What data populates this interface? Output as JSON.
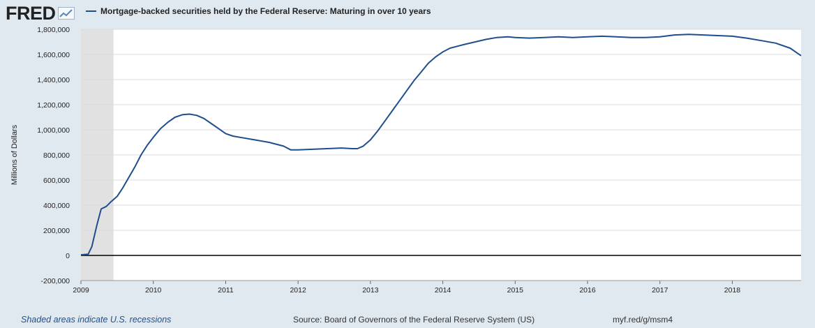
{
  "header": {
    "logo_text": "FRED",
    "title": "Mortgage-backed securities held by the Federal Reserve: Maturing in over 10 years"
  },
  "footer": {
    "recession_note": "Shaded areas indicate U.S. recessions",
    "source": "Source: Board of Governors of the Federal Reserve System (US)",
    "short_url": "myf.red/g/msm4"
  },
  "colors": {
    "series": "#1f4e8c",
    "recession": "#e1e1e1",
    "plot_bg": "#ffffff",
    "page_bg": "#e1e9f0"
  },
  "chart_data": {
    "type": "line",
    "title": "Mortgage-backed securities held by the Federal Reserve: Maturing in over 10 years",
    "ylabel": "Millions of Dollars",
    "xlabel": "",
    "xlim": [
      2009.0,
      2018.95
    ],
    "ylim": [
      -200000,
      1800000
    ],
    "yticks": [
      -200000,
      0,
      200000,
      400000,
      600000,
      800000,
      1000000,
      1200000,
      1400000,
      1600000,
      1800000
    ],
    "ytick_labels": [
      "-200,000",
      "0",
      "200,000",
      "400,000",
      "600,000",
      "800,000",
      "1,000,000",
      "1,200,000",
      "1,400,000",
      "1,600,000",
      "1,800,000"
    ],
    "xticks": [
      2009,
      2010,
      2011,
      2012,
      2013,
      2014,
      2015,
      2016,
      2017,
      2018
    ],
    "xtick_labels": [
      "2009",
      "2010",
      "2011",
      "2012",
      "2013",
      "2014",
      "2015",
      "2016",
      "2017",
      "2018"
    ],
    "grid": true,
    "recessions": [
      {
        "start": 2009.0,
        "end": 2009.45
      }
    ],
    "series": [
      {
        "name": "Mortgage-backed securities held by the Federal Reserve: Maturing in over 10 years",
        "x": [
          2009.0,
          2009.1,
          2009.15,
          2009.22,
          2009.28,
          2009.35,
          2009.42,
          2009.5,
          2009.58,
          2009.66,
          2009.75,
          2009.83,
          2009.92,
          2010.0,
          2010.1,
          2010.2,
          2010.3,
          2010.4,
          2010.5,
          2010.6,
          2010.7,
          2010.8,
          2010.9,
          2011.0,
          2011.1,
          2011.2,
          2011.4,
          2011.6,
          2011.8,
          2011.9,
          2012.0,
          2012.2,
          2012.4,
          2012.6,
          2012.75,
          2012.82,
          2012.9,
          2013.0,
          2013.1,
          2013.2,
          2013.3,
          2013.4,
          2013.5,
          2013.6,
          2013.7,
          2013.8,
          2013.9,
          2014.0,
          2014.1,
          2014.2,
          2014.3,
          2014.45,
          2014.6,
          2014.75,
          2014.9,
          2015.0,
          2015.2,
          2015.4,
          2015.6,
          2015.8,
          2016.0,
          2016.2,
          2016.4,
          2016.6,
          2016.8,
          2017.0,
          2017.2,
          2017.4,
          2017.6,
          2017.8,
          2018.0,
          2018.2,
          2018.4,
          2018.6,
          2018.8,
          2018.95
        ],
        "y": [
          5000,
          10000,
          70000,
          240000,
          370000,
          390000,
          430000,
          470000,
          540000,
          620000,
          710000,
          800000,
          880000,
          940000,
          1010000,
          1060000,
          1100000,
          1120000,
          1125000,
          1115000,
          1090000,
          1050000,
          1010000,
          970000,
          950000,
          940000,
          920000,
          900000,
          870000,
          840000,
          840000,
          845000,
          850000,
          855000,
          850000,
          850000,
          870000,
          920000,
          990000,
          1070000,
          1150000,
          1230000,
          1310000,
          1390000,
          1460000,
          1530000,
          1580000,
          1620000,
          1650000,
          1665000,
          1680000,
          1700000,
          1720000,
          1735000,
          1740000,
          1735000,
          1730000,
          1735000,
          1740000,
          1735000,
          1740000,
          1745000,
          1740000,
          1735000,
          1735000,
          1740000,
          1755000,
          1760000,
          1755000,
          1750000,
          1745000,
          1730000,
          1710000,
          1690000,
          1650000,
          1590000
        ]
      }
    ]
  }
}
